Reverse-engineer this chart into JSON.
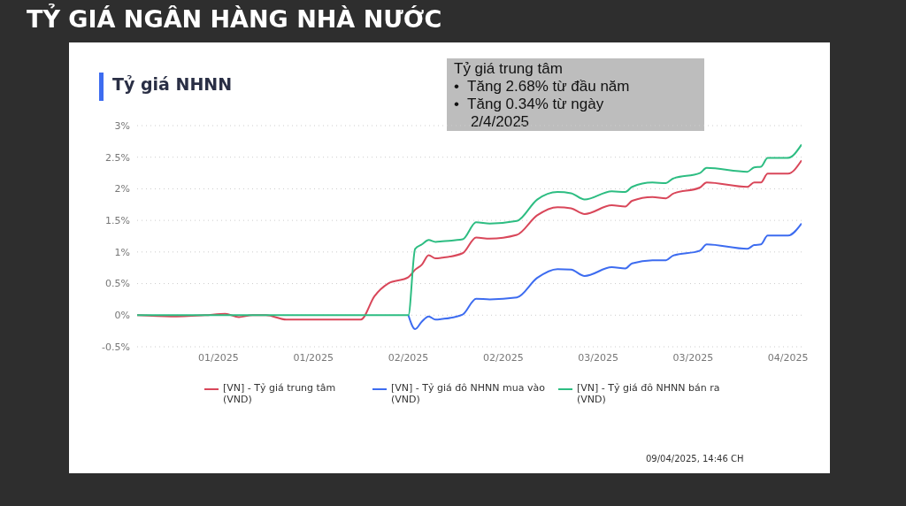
{
  "chart_data": {
    "type": "line",
    "title": "TỶ GIÁ NGÂN HÀNG NHÀ NƯỚC",
    "subtitle": "Tỷ giá NHNN",
    "x": [
      "2024-12-31",
      "2025-01-05",
      "2025-01-10",
      "2025-01-13",
      "2025-01-15",
      "2025-01-17",
      "2025-01-19",
      "2025-01-22",
      "2025-02-02",
      "2025-02-04",
      "2025-02-06",
      "2025-02-09",
      "2025-02-10",
      "2025-02-11",
      "2025-02-12",
      "2025-02-13",
      "2025-02-14",
      "2025-02-17",
      "2025-02-19",
      "2025-02-21",
      "2025-02-25",
      "2025-02-28",
      "2025-03-03",
      "2025-03-05",
      "2025-03-07",
      "2025-03-11",
      "2025-03-13",
      "2025-03-14",
      "2025-03-17",
      "2025-03-19",
      "2025-03-20",
      "2025-03-24",
      "2025-03-25",
      "2025-03-31",
      "2025-04-01",
      "2025-04-02",
      "2025-04-03",
      "2025-04-06",
      "2025-04-08"
    ],
    "series": [
      {
        "name": "[VN] - Tỷ giá trung tâm (VND)",
        "color": "#d9475a",
        "values": [
          0,
          -0.02,
          0,
          0.02,
          -0.03,
          0,
          0,
          -0.07,
          -0.07,
          0.3,
          0.5,
          0.6,
          0.72,
          0.8,
          0.95,
          0.9,
          0.91,
          0.98,
          1.23,
          1.21,
          1.27,
          1.58,
          1.71,
          1.69,
          1.6,
          1.74,
          1.72,
          1.81,
          1.87,
          1.85,
          1.92,
          2.02,
          2.1,
          2.03,
          2.1,
          2.1,
          2.24,
          2.24,
          2.45
        ]
      },
      {
        "name": "[VN] - Tỷ giá đô NHNN mua vào (VND)",
        "color": "#3d6cf0",
        "values": [
          null,
          null,
          null,
          null,
          null,
          null,
          null,
          null,
          null,
          null,
          null,
          0,
          -0.22,
          -0.1,
          -0.02,
          -0.07,
          -0.06,
          0.01,
          0.26,
          0.25,
          0.28,
          0.59,
          0.73,
          0.72,
          0.62,
          0.76,
          0.74,
          0.82,
          0.87,
          0.87,
          0.94,
          1.02,
          1.12,
          1.05,
          1.11,
          1.12,
          1.26,
          1.26,
          1.45
        ]
      },
      {
        "name": "[VN] - Tỷ giá đô NHNN bán ra (VND)",
        "color": "#2dbd82",
        "values": [
          0,
          0,
          0,
          0,
          0,
          0,
          0,
          0,
          0,
          0,
          0,
          0,
          1.05,
          1.12,
          1.19,
          1.16,
          1.17,
          1.2,
          1.47,
          1.45,
          1.49,
          1.83,
          1.95,
          1.93,
          1.83,
          1.96,
          1.95,
          2.03,
          2.1,
          2.09,
          2.16,
          2.25,
          2.33,
          2.27,
          2.34,
          2.35,
          2.49,
          2.49,
          2.7
        ]
      }
    ],
    "xlim": [
      "2024-12-31",
      "2025-04-08"
    ],
    "xticks": [
      {
        "value": "2025-01-12",
        "label": "01/2025"
      },
      {
        "value": "2025-01-26",
        "label": "01/2025"
      },
      {
        "value": "2025-02-09",
        "label": "02/2025"
      },
      {
        "value": "2025-02-23",
        "label": "02/2025"
      },
      {
        "value": "2025-03-09",
        "label": "03/2025"
      },
      {
        "value": "2025-03-23",
        "label": "03/2025"
      },
      {
        "value": "2025-04-06",
        "label": "04/2025"
      }
    ],
    "ylim": [
      -0.5,
      3
    ],
    "yticks": [
      {
        "value": -0.5,
        "label": "-0.5%"
      },
      {
        "value": 0,
        "label": "0%"
      },
      {
        "value": 0.5,
        "label": "0.5%"
      },
      {
        "value": 1,
        "label": "1%"
      },
      {
        "value": 1.5,
        "label": "1.5%"
      },
      {
        "value": 2,
        "label": "2%"
      },
      {
        "value": 2.5,
        "label": "2.5%"
      },
      {
        "value": 3,
        "label": "3%"
      }
    ],
    "grid": "y",
    "legend": "bottom",
    "marker": "none",
    "line_style": "solid",
    "annotations": [
      "Tỷ giá trung tâm\n•  Tăng 2.68% từ đầu năm\n•  Tăng 0.34% từ ngày\n    2/4/2025",
      "09/04/2025, 14:46 CH"
    ]
  }
}
